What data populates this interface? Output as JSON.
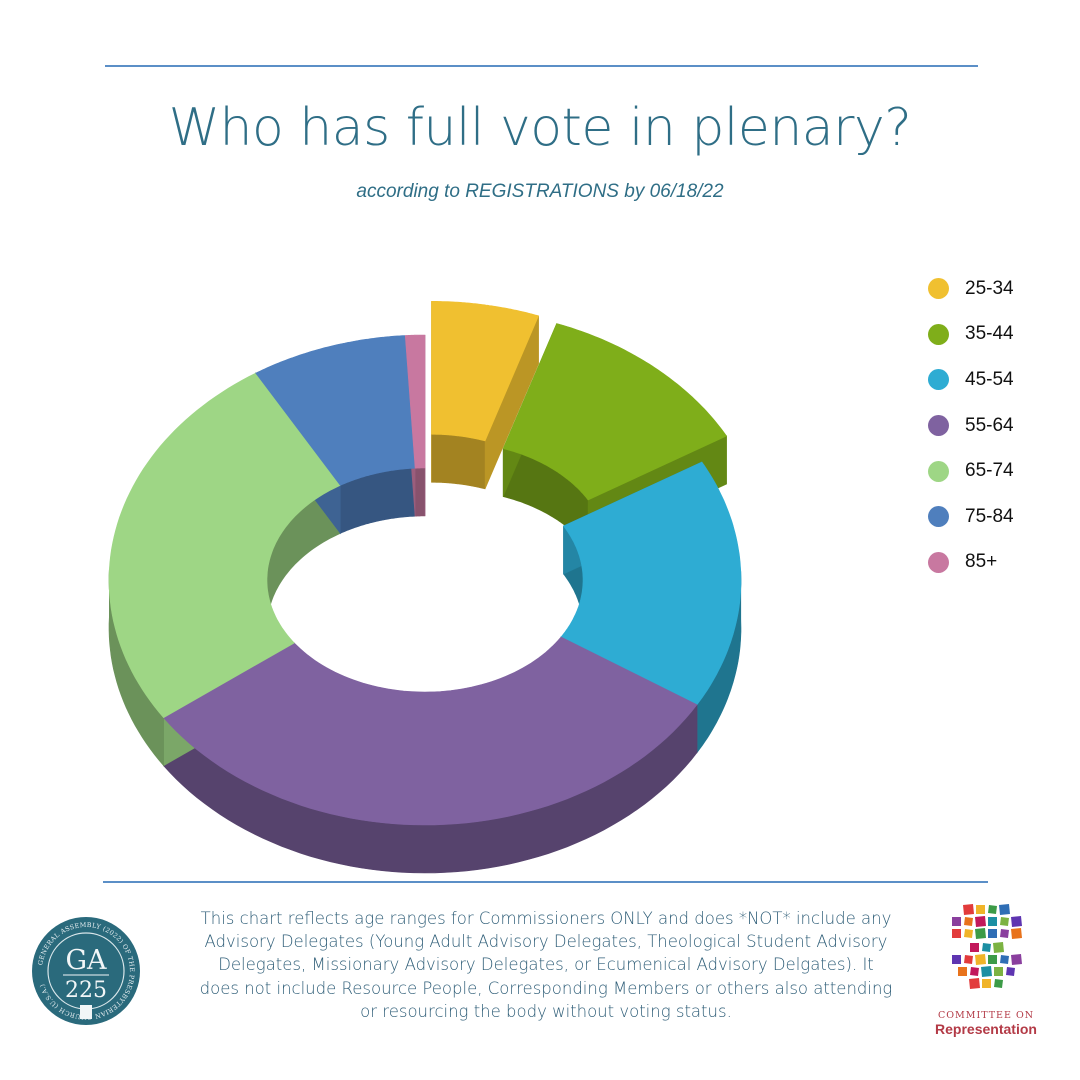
{
  "header": {
    "title": "Who has full vote in plenary?",
    "subtitle": "according to REGISTRATIONS by 06/18/22"
  },
  "chart_data": {
    "type": "pie",
    "style": "3d-exploded-donut",
    "title": "Who has full vote in plenary?",
    "subtitle": "according to REGISTRATIONS by 06/18/22",
    "legend_position": "right",
    "categories": [
      "25-34",
      "35-44",
      "45-54",
      "55-64",
      "65-74",
      "75-84",
      "85+"
    ],
    "values": [
      5.5,
      11.5,
      16.5,
      32,
      25.5,
      8,
      1
    ],
    "exploded": [
      "25-34",
      "35-44"
    ],
    "colors": [
      "#f0c030",
      "#7fae1a",
      "#2eacd3",
      "#7f62a0",
      "#9ed685",
      "#4f7fbd",
      "#c878a0"
    ]
  },
  "footer": {
    "note": "This chart reflects age ranges for Commissioners ONLY and does *NOT* include any Advisory Delegates (Young Adult Advisory Delegates, Theological Student Advisory Delegates, Missionary Advisory Delegates, or Ecumenical Advisory Delgates). It does not include Resource People, Corresponding Members or others also attending or resourcing the body without voting status.",
    "seal_text": "GA\n225",
    "seal_ring_text": "GENERAL ASSEMBLY (2022) OF THE PRESBYTERIAN CHURCH (U.S.A.)",
    "logo_line1": "COMMITTEE ON",
    "logo_line2": "Representation"
  }
}
